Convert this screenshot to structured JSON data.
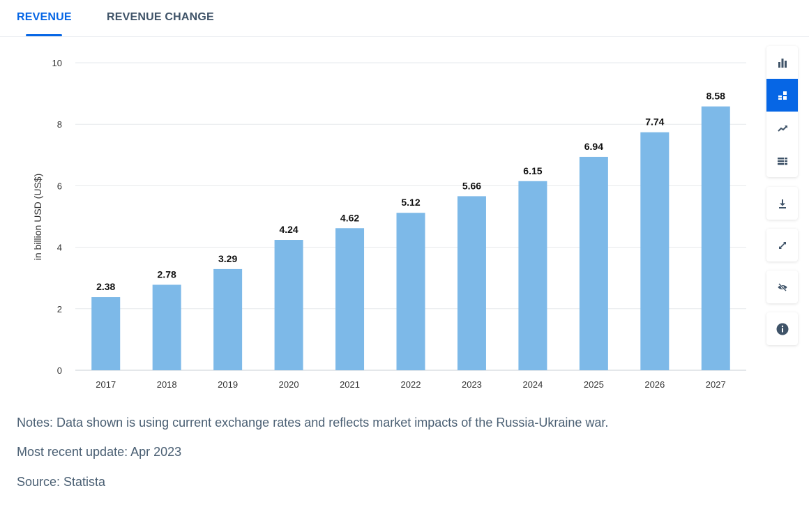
{
  "tabs": {
    "revenue": "REVENUE",
    "revenue_change": "REVENUE CHANGE"
  },
  "toolbar": {
    "icons": [
      "bar-chart-icon",
      "stacked-bar-icon",
      "line-chart-icon",
      "table-icon",
      "download-icon",
      "expand-icon",
      "hide-icon",
      "info-icon"
    ],
    "active": "stacked-bar-icon"
  },
  "chart_data": {
    "type": "bar",
    "categories": [
      "2017",
      "2018",
      "2019",
      "2020",
      "2021",
      "2022",
      "2023",
      "2024",
      "2025",
      "2026",
      "2027"
    ],
    "values": [
      2.38,
      2.78,
      3.29,
      4.24,
      4.62,
      5.12,
      5.66,
      6.15,
      6.94,
      7.74,
      8.58
    ],
    "value_labels": [
      "2.38",
      "2.78",
      "3.29",
      "4.24",
      "4.62",
      "5.12",
      "5.66",
      "6.15",
      "6.94",
      "7.74",
      "8.58"
    ],
    "ylabel": "in billion USD (US$)",
    "ylim": [
      0,
      10
    ],
    "yticks": [
      "0",
      "2",
      "4",
      "6",
      "8",
      "10"
    ],
    "grid": true,
    "bar_color": "#7db9e8"
  },
  "notes": {
    "note": "Notes: Data shown is using current exchange rates and reflects market impacts of the Russia-Ukraine war.",
    "update": "Most recent update: Apr 2023",
    "source": "Source: Statista"
  },
  "colors": {
    "accent": "#0666e5",
    "text_muted": "#4a5f73"
  }
}
